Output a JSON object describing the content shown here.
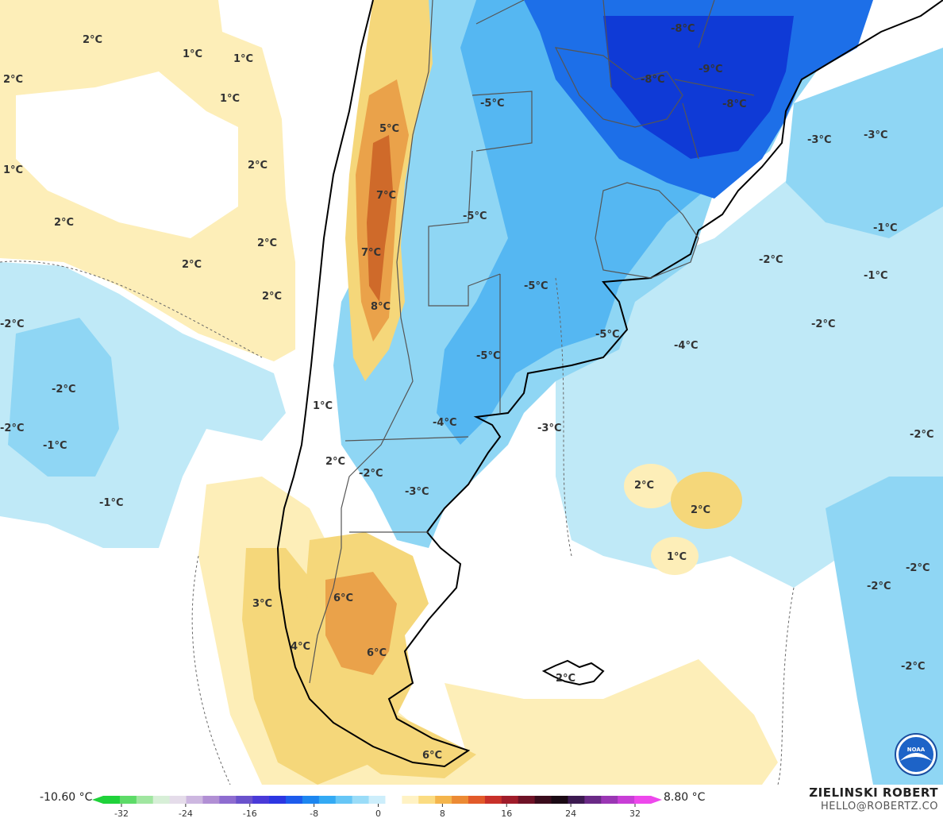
{
  "map": {
    "colors": {
      "ocean_neutral": "#ffffff",
      "light_warm": "#fdeeb8",
      "warm": "#f5d77a",
      "orange": "#eaa24a",
      "dark_orange": "#cf6a2a",
      "light_blue": "#bfe9f7",
      "mid_blue": "#8fd6f4",
      "blue": "#55b7f2",
      "deep_blue": "#1d6fe8",
      "darkest_blue": "#0f3ad6",
      "coastline": "#000000",
      "borders": "#555555"
    },
    "temperature_labels": [
      "2°C",
      "1°C",
      "1°C",
      "2°C",
      "1°C",
      "2°C",
      "1°C",
      "2°C",
      "2°C",
      "2°C",
      "2°C",
      "-2°C",
      "-2°C",
      "-2°C",
      "-1°C",
      "-1°C",
      "5°C",
      "7°C",
      "7°C",
      "8°C",
      "1°C",
      "2°C",
      "-2°C",
      "3°C",
      "6°C",
      "4°C",
      "6°C",
      "6°C",
      "-5°C",
      "-5°C",
      "-5°C",
      "-5°C",
      "-5°C",
      "-4°C",
      "-3°C",
      "-3°C",
      "-8°C",
      "-9°C",
      "-8°C",
      "-8°C",
      "-3°C",
      "-3°C",
      "-1°C",
      "-1°C",
      "-2°C",
      "-2°C",
      "-4°C",
      "-2°C",
      "2°C",
      "2°C",
      "1°C",
      "-2°C",
      "-2°C",
      "-2°C",
      "2°C"
    ]
  },
  "legend": {
    "min_label": "-10.60 °C",
    "max_label": "8.80 °C",
    "ticks": [
      "-32",
      "-24",
      "-16",
      "-8",
      "0",
      "8",
      "16",
      "24",
      "32"
    ],
    "colors": [
      "#1fd23a",
      "#5ddb68",
      "#a0e6a0",
      "#d7efd7",
      "#e5dcea",
      "#cdb7e0",
      "#b18fd4",
      "#8e6cd0",
      "#6a52cc",
      "#4a3ad8",
      "#2c36e2",
      "#1d5bec",
      "#1d86f0",
      "#33aaf4",
      "#66c6f6",
      "#9adcf8",
      "#cdeefb",
      "#ffffff",
      "#fff2c4",
      "#fbdc82",
      "#f4b54c",
      "#ec8a34",
      "#e25a2a",
      "#c8302a",
      "#a01c2a",
      "#6e1226",
      "#3a0c1c",
      "#1a0a14",
      "#3c1a50",
      "#6a2a86",
      "#9a36b4",
      "#c83ed6",
      "#ee48ec"
    ]
  },
  "credits": {
    "name": "ZIELINSKI ROBERT",
    "email": "HELLO@ROBERTZ.CO",
    "logo_text": "NOAA"
  }
}
